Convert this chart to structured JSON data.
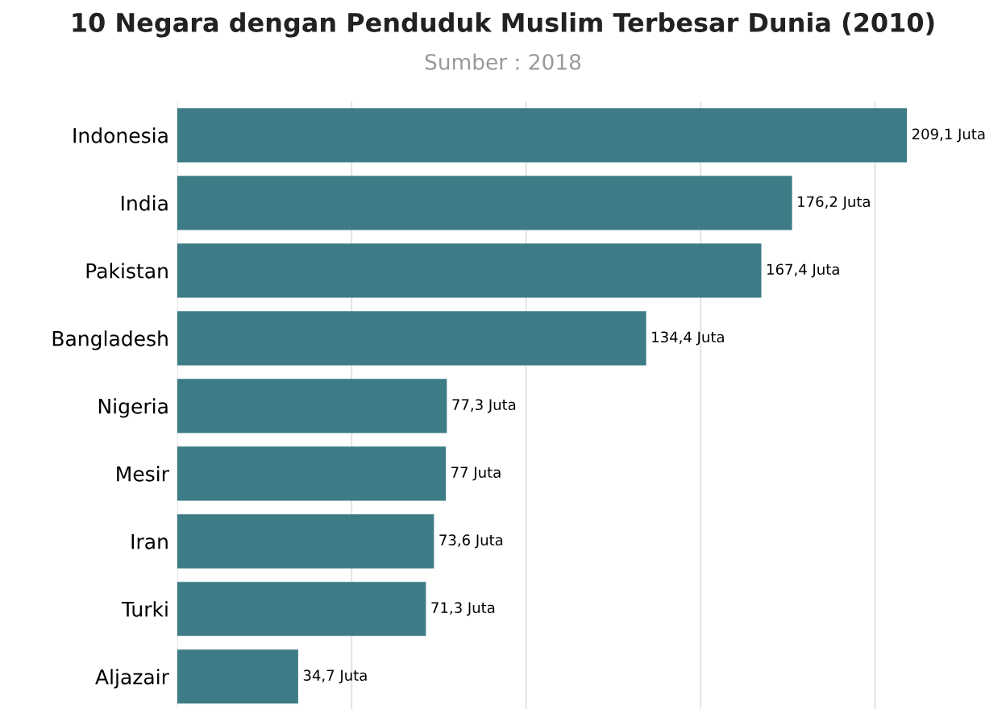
{
  "chart_data": {
    "type": "bar",
    "orientation": "horizontal",
    "title": "10 Negara dengan Penduduk Muslim Terbesar Dunia (2010)",
    "subtitle": "Sumber : 2018",
    "categories": [
      "Indonesia",
      "India",
      "Pakistan",
      "Bangladesh",
      "Nigeria",
      "Mesir",
      "Iran",
      "Turki",
      "Aljazair"
    ],
    "values": [
      209.1,
      176.2,
      167.4,
      134.4,
      77.3,
      77,
      73.6,
      71.3,
      34.7
    ],
    "value_labels": [
      "209,1 Juta",
      "176,2 Juta",
      "167,4 Juta",
      "134,4 Juta",
      "77,3 Juta",
      "77 Juta",
      "73,6 Juta",
      "71,3 Juta",
      "34,7 Juta"
    ],
    "color": "#33757f",
    "grid": "x",
    "tick_labels": "y"
  }
}
